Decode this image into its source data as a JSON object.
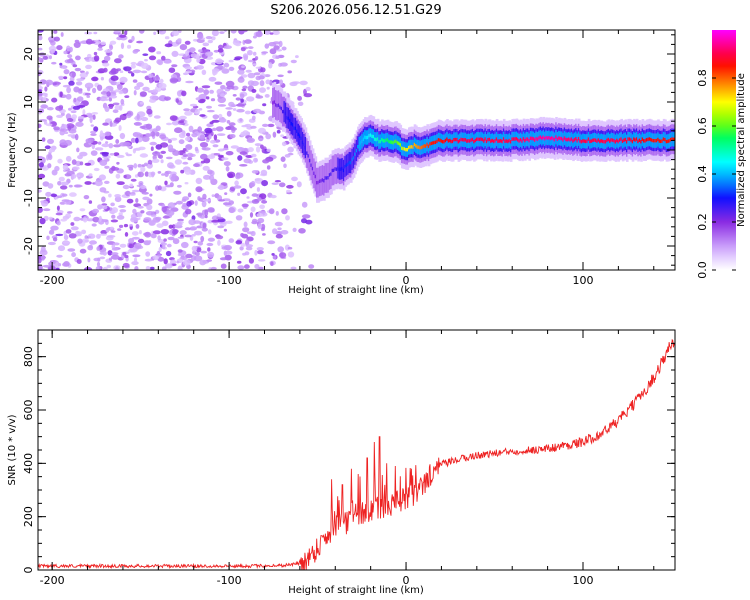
{
  "title": "S206.2026.056.12.51.G29",
  "chart_data": [
    {
      "type": "heatmap",
      "name": "spectrogram",
      "xlabel": "Height of straight line (km)",
      "ylabel": "Frequency (Hz)",
      "xlim": [
        -208,
        152
      ],
      "ylim": [
        -25,
        25
      ],
      "xticks": [
        -200,
        -100,
        0,
        100
      ],
      "yticks": [
        -20,
        -10,
        0,
        10,
        20
      ],
      "colorbar": {
        "label": "Normalized spectral amplitude",
        "range": [
          0,
          1
        ],
        "ticks": [
          "0.0",
          "0.2",
          "0.4",
          "0.6",
          "0.8"
        ],
        "tick_values": [
          0.0,
          0.2,
          0.4,
          0.6,
          0.8
        ],
        "colormap": [
          "#ffffff",
          "#d9b3ff",
          "#8a2be2",
          "#1010ff",
          "#00a0ff",
          "#00ffff",
          "#00ff60",
          "#80ff00",
          "#ffff00",
          "#ff8000",
          "#ff0000",
          "#ff0080",
          "#ff00ff"
        ]
      },
      "noise_region_x": [
        -208,
        -60
      ],
      "ridge": {
        "x": [
          -75,
          -70,
          -65,
          -60,
          -55,
          -50,
          -45,
          -40,
          -35,
          -30,
          -25,
          -20,
          -15,
          -10,
          -5,
          0,
          5,
          10,
          15,
          20,
          30,
          40,
          60,
          80,
          100,
          120,
          140,
          152
        ],
        "freq": [
          10,
          8.5,
          6,
          3,
          -1,
          -7,
          -6,
          -4,
          -4,
          -2,
          2,
          3,
          2,
          2,
          1.5,
          0,
          1,
          0.5,
          1.5,
          2,
          2,
          2,
          2,
          2.5,
          2,
          2,
          2,
          2
        ],
        "amp": [
          0.2,
          0.25,
          0.3,
          0.3,
          0.25,
          0.2,
          0.25,
          0.25,
          0.3,
          0.35,
          0.4,
          0.45,
          0.5,
          0.55,
          0.6,
          0.7,
          0.75,
          0.8,
          0.85,
          0.85,
          0.9,
          0.9,
          0.9,
          0.95,
          0.9,
          0.9,
          0.85,
          0.85
        ]
      }
    },
    {
      "type": "line",
      "name": "snr",
      "xlabel": "Height of straight line (km)",
      "ylabel": "SNR (10 * v/v)",
      "xlim": [
        -208,
        152
      ],
      "ylim": [
        0,
        900
      ],
      "xticks": [
        -200,
        -100,
        0,
        100
      ],
      "yticks": [
        0,
        200,
        400,
        600,
        800
      ],
      "color": "#ee2222",
      "trend": {
        "x": [
          -208,
          -180,
          -150,
          -120,
          -90,
          -70,
          -60,
          -55,
          -50,
          -45,
          -40,
          -35,
          -30,
          -25,
          -20,
          -15,
          -10,
          -5,
          0,
          5,
          10,
          15,
          20,
          30,
          40,
          60,
          80,
          100,
          110,
          120,
          130,
          140,
          150
        ],
        "y": [
          15,
          15,
          15,
          15,
          15,
          17,
          25,
          45,
          85,
          130,
          160,
          175,
          190,
          210,
          225,
          235,
          245,
          255,
          265,
          280,
          320,
          370,
          395,
          415,
          430,
          445,
          455,
          480,
          510,
          560,
          630,
          720,
          850
        ]
      },
      "spikes": [
        {
          "x": -42,
          "y": 340
        },
        {
          "x": -36,
          "y": 320
        },
        {
          "x": -31,
          "y": 380
        },
        {
          "x": -27,
          "y": 360
        },
        {
          "x": -22,
          "y": 420
        },
        {
          "x": -18,
          "y": 480
        },
        {
          "x": -15,
          "y": 500
        },
        {
          "x": -11,
          "y": 400
        },
        {
          "x": -6,
          "y": 390
        },
        {
          "x": 3,
          "y": 380
        },
        {
          "x": 10,
          "y": 330
        },
        {
          "x": 15,
          "y": 340
        }
      ]
    }
  ]
}
